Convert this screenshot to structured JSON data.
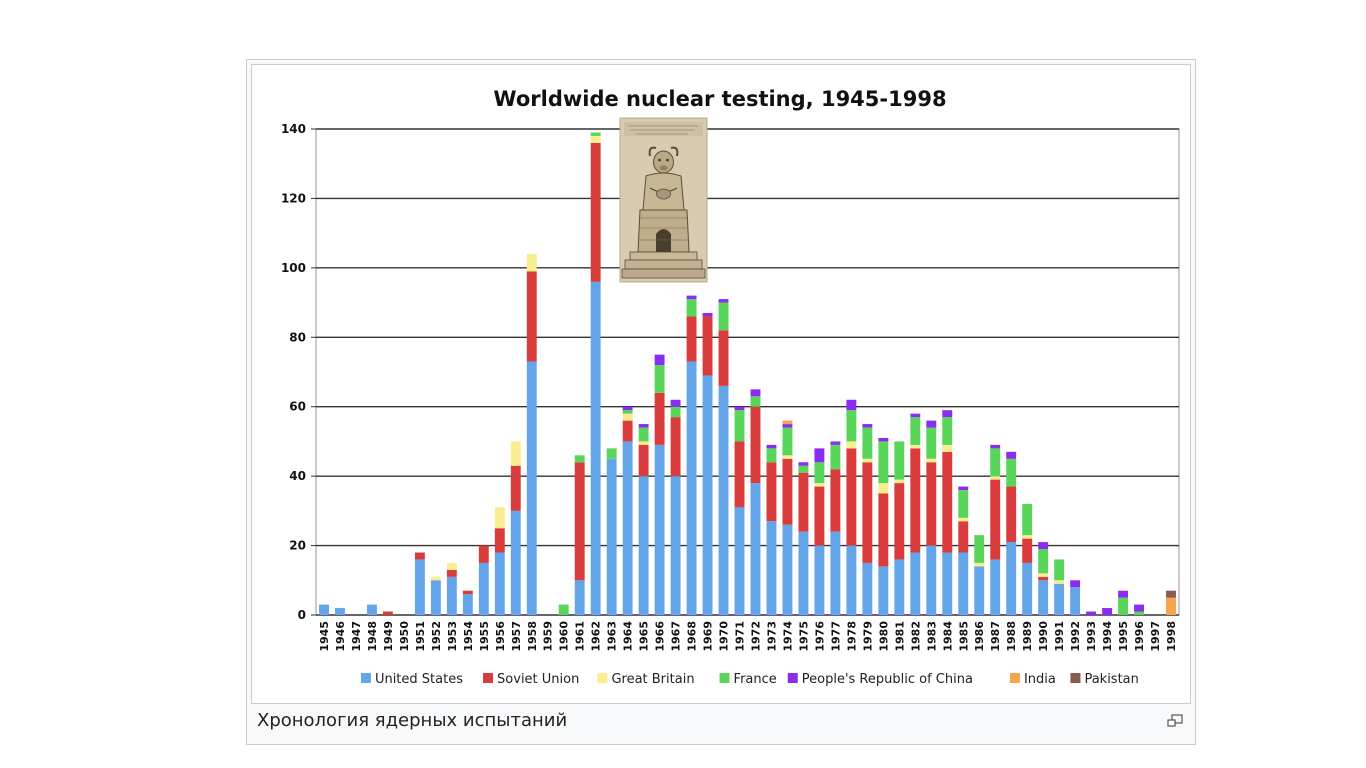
{
  "caption": "Хронология ядерных испытаний",
  "magnify_icon": "magnify-clip-icon",
  "chart_data": {
    "type": "bar",
    "stacked": true,
    "title": "Worldwide nuclear testing, 1945-1998",
    "xlabel": "",
    "ylabel": "",
    "ylim": [
      0,
      140
    ],
    "yticks": [
      0,
      20,
      40,
      60,
      80,
      100,
      120,
      140
    ],
    "grid": true,
    "legend_position": "bottom",
    "categories": [
      "1945",
      "1946",
      "1947",
      "1948",
      "1949",
      "1950",
      "1951",
      "1952",
      "1953",
      "1954",
      "1955",
      "1956",
      "1957",
      "1958",
      "1959",
      "1960",
      "1961",
      "1962",
      "1963",
      "1964",
      "1965",
      "1966",
      "1967",
      "1968",
      "1969",
      "1970",
      "1971",
      "1972",
      "1973",
      "1974",
      "1975",
      "1976",
      "1977",
      "1978",
      "1979",
      "1980",
      "1981",
      "1982",
      "1983",
      "1984",
      "1985",
      "1986",
      "1987",
      "1988",
      "1989",
      "1990",
      "1991",
      "1992",
      "1993",
      "1994",
      "1995",
      "1996",
      "1997",
      "1998"
    ],
    "series": [
      {
        "name": "United States",
        "color": "#64a4e8",
        "values": [
          3,
          2,
          0,
          3,
          0,
          0,
          16,
          10,
          11,
          6,
          15,
          18,
          30,
          73,
          0,
          0,
          10,
          96,
          45,
          50,
          40,
          49,
          40,
          73,
          69,
          66,
          31,
          38,
          27,
          26,
          24,
          20,
          24,
          20,
          15,
          14,
          16,
          18,
          20,
          18,
          18,
          14,
          16,
          21,
          15,
          10,
          9,
          8,
          0,
          0,
          0,
          0,
          0,
          0
        ]
      },
      {
        "name": "Soviet Union",
        "color": "#d93c3c",
        "values": [
          0,
          0,
          0,
          0,
          1,
          0,
          2,
          0,
          2,
          1,
          5,
          7,
          13,
          26,
          0,
          0,
          34,
          40,
          0,
          6,
          9,
          15,
          17,
          13,
          17,
          16,
          19,
          22,
          17,
          19,
          17,
          17,
          18,
          28,
          29,
          21,
          22,
          30,
          24,
          29,
          9,
          0,
          23,
          16,
          7,
          1,
          0,
          0,
          0,
          0,
          0,
          0,
          0,
          0
        ]
      },
      {
        "name": "Great Britain",
        "color": "#f8ee90",
        "values": [
          0,
          0,
          0,
          0,
          0,
          0,
          0,
          1,
          2,
          0,
          0,
          6,
          7,
          5,
          0,
          0,
          0,
          2,
          0,
          2,
          1,
          0,
          0,
          0,
          0,
          0,
          0,
          0,
          0,
          1,
          0,
          1,
          0,
          2,
          1,
          3,
          1,
          1,
          1,
          2,
          1,
          1,
          1,
          0,
          1,
          1,
          1,
          0,
          0,
          0,
          0,
          0,
          0,
          0
        ]
      },
      {
        "name": "France",
        "color": "#59d659",
        "values": [
          0,
          0,
          0,
          0,
          0,
          0,
          0,
          0,
          0,
          0,
          0,
          0,
          0,
          0,
          0,
          3,
          2,
          1,
          3,
          1,
          4,
          8,
          3,
          5,
          0,
          8,
          9,
          3,
          4,
          8,
          2,
          6,
          7,
          9,
          9,
          12,
          11,
          8,
          9,
          8,
          8,
          8,
          8,
          8,
          9,
          7,
          6,
          0,
          0,
          0,
          5,
          1,
          0,
          0
        ]
      },
      {
        "name": "People's Republic of China",
        "color": "#8b2cf2",
        "values": [
          0,
          0,
          0,
          0,
          0,
          0,
          0,
          0,
          0,
          0,
          0,
          0,
          0,
          0,
          0,
          0,
          0,
          0,
          0,
          1,
          1,
          3,
          2,
          1,
          1,
          1,
          1,
          2,
          1,
          1,
          1,
          4,
          1,
          3,
          1,
          1,
          0,
          1,
          2,
          2,
          1,
          0,
          1,
          2,
          0,
          2,
          0,
          2,
          1,
          2,
          2,
          2,
          0,
          0
        ]
      },
      {
        "name": "India",
        "color": "#f8a44a",
        "values": [
          0,
          0,
          0,
          0,
          0,
          0,
          0,
          0,
          0,
          0,
          0,
          0,
          0,
          0,
          0,
          0,
          0,
          0,
          0,
          0,
          0,
          0,
          0,
          0,
          0,
          0,
          0,
          0,
          0,
          1,
          0,
          0,
          0,
          0,
          0,
          0,
          0,
          0,
          0,
          0,
          0,
          0,
          0,
          0,
          0,
          0,
          0,
          0,
          0,
          0,
          0,
          0,
          0,
          5
        ]
      },
      {
        "name": "Pakistan",
        "color": "#8b5a52",
        "values": [
          0,
          0,
          0,
          0,
          0,
          0,
          0,
          0,
          0,
          0,
          0,
          0,
          0,
          0,
          0,
          0,
          0,
          0,
          0,
          0,
          0,
          0,
          0,
          0,
          0,
          0,
          0,
          0,
          0,
          0,
          0,
          0,
          0,
          0,
          0,
          0,
          0,
          0,
          0,
          0,
          0,
          0,
          0,
          0,
          0,
          0,
          0,
          0,
          0,
          0,
          0,
          0,
          0,
          2
        ]
      }
    ]
  },
  "overlay_image": {
    "name": "engraved-idol-figure-image",
    "paper_color": "#d9cbb0",
    "ink_color": "#5a4c38"
  }
}
